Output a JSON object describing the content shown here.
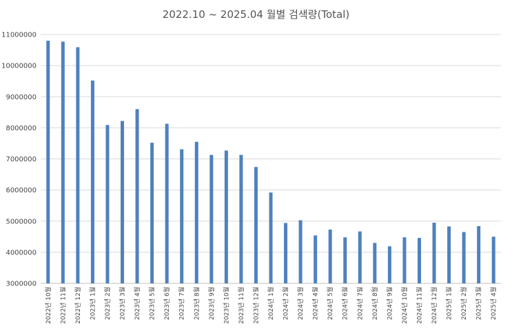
{
  "chart_data": {
    "type": "bar",
    "title": "2022.10 ~ 2025.04 월별 검색량(Total)",
    "xlabel": "",
    "ylabel": "",
    "ylim": [
      3000000,
      11000000
    ],
    "yticks": [
      "3000000",
      "4000000",
      "5000000",
      "6000000",
      "7000000",
      "8000000",
      "9000000",
      "10000000",
      "11000000"
    ],
    "grid": true,
    "bar_color": "#4f81bd",
    "categories": [
      "2022년 10월",
      "2022년 11월",
      "2022년 12월",
      "2023년 1월",
      "2023년 2월",
      "2023년 3월",
      "2023년 4월",
      "2023년 5월",
      "2023년 6월",
      "2023년 7월",
      "2023년 8월",
      "2023년 9월",
      "2023년 10월",
      "2023년 11월",
      "2023년 12월",
      "2024년 1월",
      "2024년 2월",
      "2024년 3월",
      "2024년 4월",
      "2024년 5월",
      "2024년 6월",
      "2024년 7월",
      "2024년 8월",
      "2024년 9월",
      "2024년 10월",
      "2024년 11월",
      "2024년 12월",
      "2025년 1월",
      "2025년 2월",
      "2025년 3월",
      "2025년 4월"
    ],
    "values": [
      10800000,
      10770000,
      10590000,
      9520000,
      8090000,
      8220000,
      8600000,
      7520000,
      8130000,
      7310000,
      7550000,
      7130000,
      7270000,
      7130000,
      6740000,
      5920000,
      4940000,
      5030000,
      4540000,
      4730000,
      4480000,
      4670000,
      4300000,
      4190000,
      4480000,
      4460000,
      4950000,
      4830000,
      4650000,
      4840000,
      4500000
    ]
  }
}
